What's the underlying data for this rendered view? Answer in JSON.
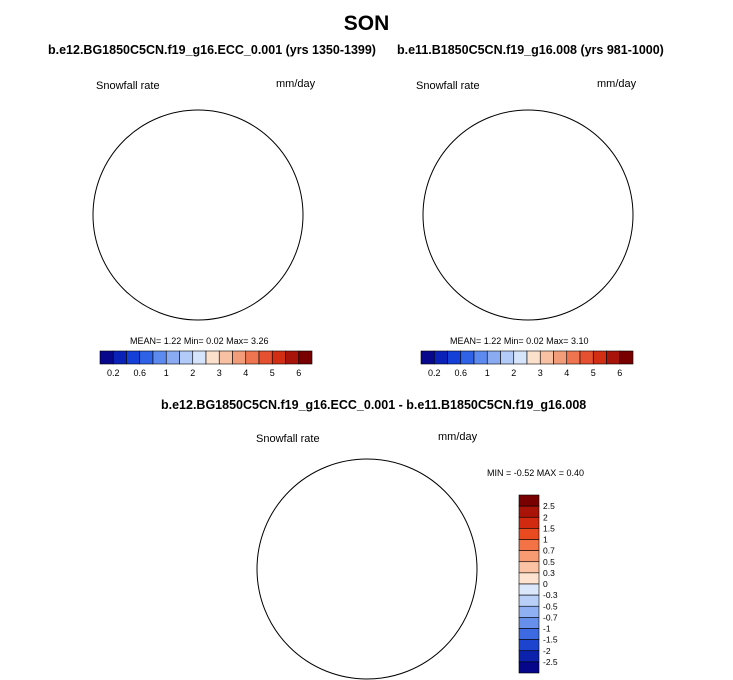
{
  "figure": {
    "title": "SON"
  },
  "panels": [
    {
      "title": "b.e12.BG1850C5CN.f19_g16.ECC_0.001 (yrs 1350-1399)",
      "variable": "Snowfall rate",
      "units": "mm/day",
      "stats": {
        "mean_label": "MEAN=",
        "mean": "1.22",
        "min_label": "Min=",
        "min": "0.02",
        "max_label": "Max=",
        "max": "3.26"
      }
    },
    {
      "title": "b.e11.B1850C5CN.f19_g16.008 (yrs 981-1000)",
      "variable": "Snowfall rate",
      "units": "mm/day",
      "stats": {
        "mean_label": "MEAN=",
        "mean": "1.22",
        "min_label": "Min=",
        "min": "0.02",
        "max_label": "Max=",
        "max": "3.10"
      }
    },
    {
      "title": "b.e12.BG1850C5CN.f19_g16.ECC_0.001 - b.e11.B1850C5CN.f19_g16.008",
      "variable": "Snowfall rate",
      "units": "mm/day",
      "minmax": "MIN = -0.52 MAX =  0.40"
    }
  ],
  "colorbar_abs": {
    "colors": [
      "#08088c",
      "#0b22b8",
      "#1540d8",
      "#2f62e6",
      "#5d8aee",
      "#8aaaf2",
      "#b2cbf8",
      "#d6e4fb",
      "#fbe0cc",
      "#f8c1a4",
      "#f39c7a",
      "#ee7550",
      "#e55130",
      "#d12e14",
      "#a8140a",
      "#780000"
    ],
    "labels": [
      "0.2",
      "0.6",
      "1",
      "2",
      "3",
      "4",
      "5",
      "6"
    ]
  },
  "colorbar_diff": {
    "colors": [
      "#780000",
      "#aa1408",
      "#d22a10",
      "#ea4a20",
      "#f37246",
      "#f89a72",
      "#fbc2a4",
      "#fde3d0",
      "#dbe8fb",
      "#b8d0f8",
      "#8fb0f2",
      "#6690ec",
      "#3d6ae2",
      "#1c44cf",
      "#0c22ac",
      "#06068a"
    ],
    "labels": [
      "2.5",
      "2",
      "1.5",
      "1",
      "0.7",
      "0.5",
      "0.3",
      "0",
      "-0.3",
      "-0.5",
      "-0.7",
      "-1",
      "-1.5",
      "-2",
      "-2.5"
    ]
  },
  "chart_data": [
    {
      "type": "heatmap",
      "title": "b.e12.BG1850C5CN.f19_g16.ECC_0.001 (yrs 1350-1399)",
      "variable": "Snowfall rate",
      "units": "mm/day",
      "projection": "south polar stereographic",
      "mean": 1.22,
      "min": 0.02,
      "max": 3.26,
      "colorbar_levels": [
        0.2,
        0.6,
        1,
        2,
        3,
        4,
        5,
        6
      ]
    },
    {
      "type": "heatmap",
      "title": "b.e11.B1850C5CN.f19_g16.008 (yrs 981-1000)",
      "variable": "Snowfall rate",
      "units": "mm/day",
      "projection": "south polar stereographic",
      "mean": 1.22,
      "min": 0.02,
      "max": 3.1,
      "colorbar_levels": [
        0.2,
        0.6,
        1,
        2,
        3,
        4,
        5,
        6
      ]
    },
    {
      "type": "heatmap",
      "title": "b.e12.BG1850C5CN.f19_g16.ECC_0.001 - b.e11.B1850C5CN.f19_g16.008",
      "variable": "Snowfall rate",
      "units": "mm/day",
      "projection": "south polar stereographic",
      "min": -0.52,
      "max": 0.4,
      "colorbar_levels": [
        -2.5,
        -2,
        -1.5,
        -1,
        -0.7,
        -0.5,
        -0.3,
        0,
        0.3,
        0.5,
        0.7,
        1,
        1.5,
        2,
        2.5
      ]
    }
  ]
}
